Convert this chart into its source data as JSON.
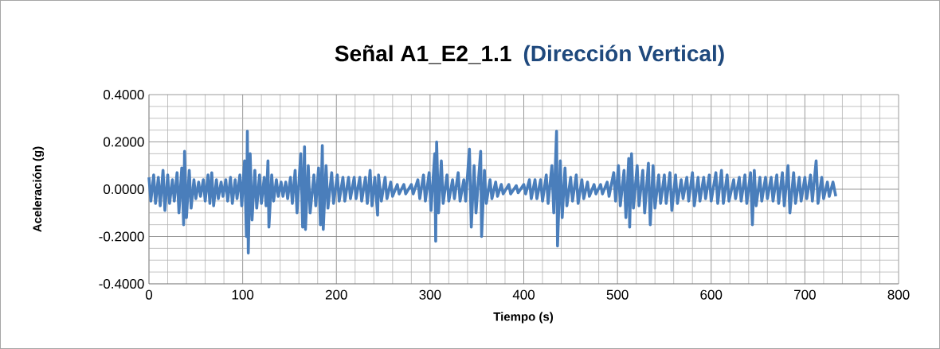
{
  "chart_data": {
    "type": "line",
    "title": "Señal A1_E2_1.1",
    "subtitle": "(Dirección Vertical)",
    "xlabel": "Tiempo (s)",
    "ylabel": "Aceleración (g)",
    "xlim": [
      0,
      800
    ],
    "xticks": [
      0,
      100,
      200,
      300,
      400,
      500,
      600,
      700,
      800
    ],
    "ylim": [
      -0.4,
      0.4
    ],
    "yticks": [
      {
        "value": -0.4,
        "label": "-0.4000"
      },
      {
        "value": -0.2,
        "label": "-0.2000"
      },
      {
        "value": 0,
        "label": "0.0000"
      },
      {
        "value": 0.2,
        "label": "0.2000"
      },
      {
        "value": 0.4,
        "label": "0.4000"
      }
    ],
    "grid": true,
    "marker": "none",
    "line_style": "solid",
    "series": [
      {
        "color": "#4a7ebb",
        "x": [
          0,
          2,
          5,
          7,
          10,
          12,
          15,
          17,
          20,
          22,
          25,
          27,
          30,
          32,
          35,
          37,
          38,
          40,
          43,
          45,
          48,
          50,
          53,
          55,
          58,
          60,
          63,
          65,
          67,
          69,
          72,
          74,
          77,
          79,
          82,
          84,
          87,
          89,
          92,
          94,
          97,
          99,
          102,
          104,
          105,
          106,
          108,
          110,
          113,
          115,
          118,
          120,
          123,
          125,
          127,
          128,
          131,
          133,
          136,
          138,
          141,
          143,
          146,
          148,
          151,
          153,
          156,
          158,
          162,
          164,
          166,
          167,
          170,
          172,
          176,
          178,
          181,
          183,
          185,
          186,
          189,
          191,
          195,
          197,
          201,
          203,
          207,
          209,
          213,
          215,
          219,
          221,
          225,
          227,
          231,
          233,
          236,
          238,
          241,
          244,
          245,
          248,
          252,
          254,
          258,
          260,
          265,
          267,
          272,
          274,
          280,
          282,
          287,
          289,
          293,
          295,
          299,
          301,
          305,
          306,
          307,
          309,
          312,
          314,
          318,
          320,
          324,
          326,
          330,
          332,
          336,
          338,
          342,
          344,
          347,
          349,
          354,
          355,
          358,
          360,
          364,
          366,
          370,
          372,
          376,
          378,
          384,
          386,
          392,
          394,
          400,
          402,
          406,
          408,
          412,
          414,
          418,
          420,
          424,
          426,
          430,
          432,
          435,
          436,
          439,
          441,
          444,
          446,
          450,
          452,
          456,
          458,
          462,
          464,
          468,
          470,
          475,
          477,
          482,
          484,
          489,
          491,
          496,
          498,
          501,
          503,
          507,
          509,
          512,
          513,
          515,
          517,
          521,
          523,
          527,
          529,
          533,
          535,
          538,
          540,
          544,
          546,
          550,
          552,
          556,
          558,
          562,
          564,
          568,
          570,
          574,
          576,
          580,
          582,
          586,
          588,
          592,
          594,
          598,
          600,
          605,
          607,
          611,
          613,
          617,
          619,
          624,
          626,
          630,
          632,
          636,
          638,
          642,
          644,
          646,
          648,
          652,
          654,
          658,
          660,
          664,
          666,
          670,
          672,
          676,
          678,
          682,
          684,
          688,
          690,
          694,
          696,
          700,
          702,
          706,
          708,
          712,
          714,
          718,
          720,
          724,
          726,
          730,
          733
        ],
        "values": [
          0.05,
          -0.05,
          0.06,
          -0.06,
          0.05,
          -0.07,
          0.08,
          -0.09,
          0.06,
          -0.06,
          0.04,
          -0.05,
          0.07,
          -0.1,
          0.09,
          -0.15,
          0.16,
          -0.12,
          0.08,
          -0.08,
          0.04,
          -0.04,
          0.03,
          -0.03,
          0.04,
          -0.05,
          0.06,
          -0.06,
          0.07,
          -0.07,
          0.04,
          -0.04,
          0.03,
          -0.03,
          0.04,
          -0.05,
          0.05,
          -0.06,
          0.04,
          -0.04,
          0.06,
          -0.07,
          0.12,
          -0.2,
          0.245,
          -0.27,
          0.15,
          -0.13,
          0.08,
          -0.08,
          0.06,
          -0.06,
          0.05,
          -0.07,
          0.12,
          -0.16,
          0.06,
          -0.05,
          0.04,
          -0.03,
          0.03,
          -0.03,
          0.03,
          -0.04,
          0.05,
          -0.06,
          0.08,
          -0.1,
          0.15,
          -0.16,
          0.18,
          -0.17,
          0.1,
          -0.1,
          0.06,
          -0.07,
          0.09,
          -0.15,
          0.185,
          -0.17,
          0.1,
          -0.08,
          0.07,
          -0.06,
          0.06,
          -0.05,
          0.05,
          -0.05,
          0.05,
          -0.04,
          0.05,
          -0.04,
          0.05,
          -0.05,
          0.05,
          -0.06,
          0.08,
          -0.07,
          0.05,
          -0.11,
          0.06,
          -0.05,
          0.05,
          -0.04,
          0.03,
          -0.03,
          0.02,
          -0.02,
          0.02,
          -0.02,
          0.02,
          -0.02,
          0.04,
          -0.04,
          0.06,
          -0.05,
          0.07,
          -0.09,
          0.15,
          -0.22,
          0.2,
          -0.1,
          0.12,
          -0.06,
          0.06,
          -0.05,
          0.04,
          -0.04,
          0.07,
          -0.05,
          0.04,
          -0.05,
          0.17,
          -0.16,
          0.1,
          -0.1,
          0.16,
          -0.2,
          0.08,
          -0.06,
          0.04,
          -0.04,
          0.03,
          -0.03,
          0.02,
          -0.02,
          0.02,
          -0.02,
          0.015,
          -0.015,
          0.02,
          -0.02,
          0.04,
          -0.04,
          0.04,
          -0.04,
          0.04,
          -0.05,
          0.06,
          -0.06,
          0.1,
          -0.1,
          0.245,
          -0.24,
          0.12,
          -0.12,
          0.09,
          -0.07,
          0.05,
          -0.05,
          0.06,
          -0.06,
          0.04,
          -0.04,
          0.03,
          -0.03,
          0.02,
          -0.02,
          0.02,
          -0.02,
          0.03,
          -0.03,
          0.07,
          -0.05,
          0.1,
          -0.07,
          0.08,
          -0.12,
          0.13,
          -0.16,
          0.15,
          -0.08,
          0.1,
          -0.07,
          0.08,
          -0.1,
          0.11,
          -0.15,
          0.1,
          -0.08,
          0.06,
          -0.06,
          0.06,
          -0.06,
          0.07,
          -0.09,
          0.06,
          -0.06,
          0.04,
          -0.04,
          0.05,
          -0.05,
          0.07,
          -0.07,
          0.05,
          -0.05,
          0.05,
          -0.04,
          0.06,
          -0.05,
          0.07,
          -0.06,
          0.08,
          -0.06,
          0.06,
          -0.05,
          0.04,
          -0.04,
          0.05,
          -0.05,
          0.06,
          -0.06,
          0.07,
          -0.15,
          0.08,
          -0.07,
          0.05,
          -0.05,
          0.05,
          -0.04,
          0.05,
          -0.05,
          0.06,
          -0.06,
          0.07,
          -0.07,
          0.1,
          -0.1,
          0.07,
          -0.06,
          0.05,
          -0.05,
          0.05,
          -0.04,
          0.06,
          -0.05,
          0.12,
          -0.06,
          0.05,
          -0.04,
          0.03,
          -0.03,
          0.03,
          -0.03
        ]
      }
    ]
  }
}
